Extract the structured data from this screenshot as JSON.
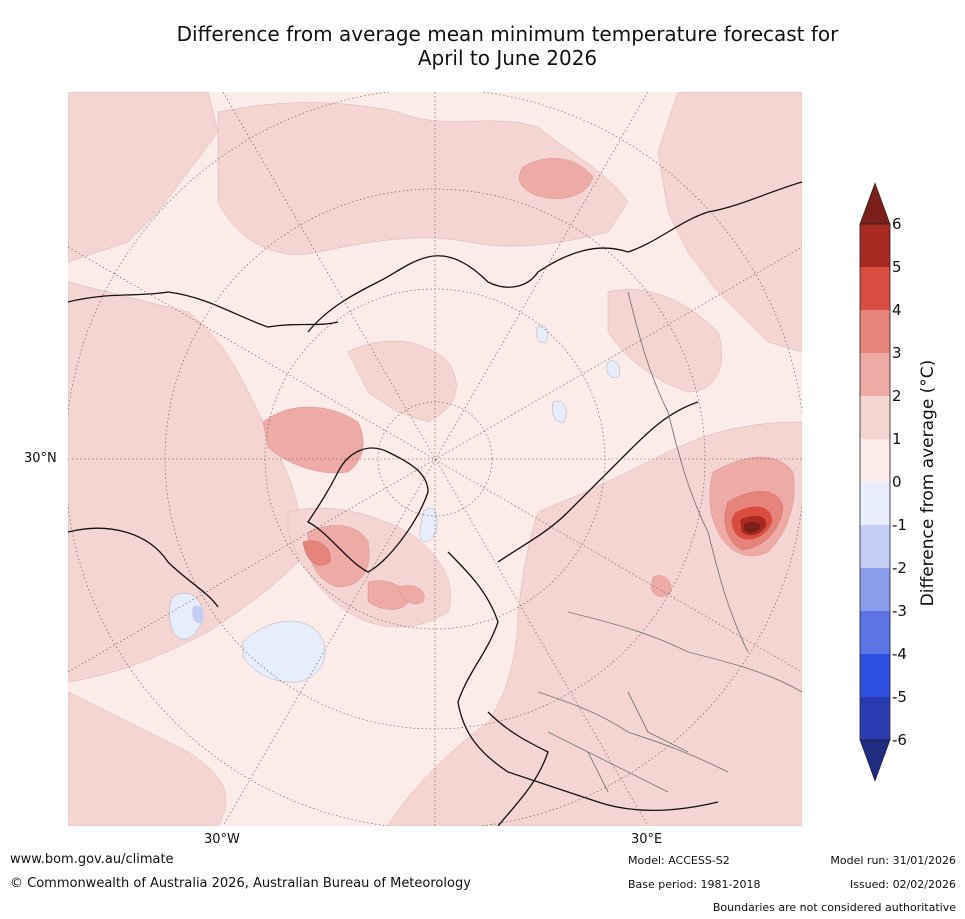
{
  "title": {
    "line1": "Difference from average mean minimum temperature forecast for",
    "line2": "April to June 2026"
  },
  "map": {
    "labels": {
      "lat_30n": "30°N",
      "lon_30w": "30°W",
      "lon_30e": "30°E"
    }
  },
  "colorbar": {
    "label": "Difference from average (°C)",
    "ticks": [
      "6",
      "5",
      "4",
      "3",
      "2",
      "1",
      "0",
      "-1",
      "-2",
      "-3",
      "-4",
      "-5",
      "-6"
    ],
    "colors": {
      "over": "#7a1f1a",
      "b6": "#a82a22",
      "b5": "#d94d40",
      "b4": "#e6837a",
      "b3": "#eeaaa5",
      "b2": "#f5d5d2",
      "b1": "#fbebe9",
      "bm1": "#e8edfb",
      "bm2": "#c4cdf3",
      "bm3": "#8a9cec",
      "bm4": "#5c74e6",
      "bm5": "#2f4fe0",
      "bm6": "#2a3ab0",
      "under": "#1e2d80"
    }
  },
  "footer": {
    "url": "www.bom.gov.au/climate",
    "copyright": "© Commonwealth of Australia 2026, Australian Bureau of Meteorology",
    "model": "Model: ACCESS-S2",
    "base_period": "Base period: 1981-2018",
    "model_run": "Model run: 31/01/2026",
    "issued": "Issued: 02/02/2026",
    "boundaries": "Boundaries are not considered authoritative"
  }
}
